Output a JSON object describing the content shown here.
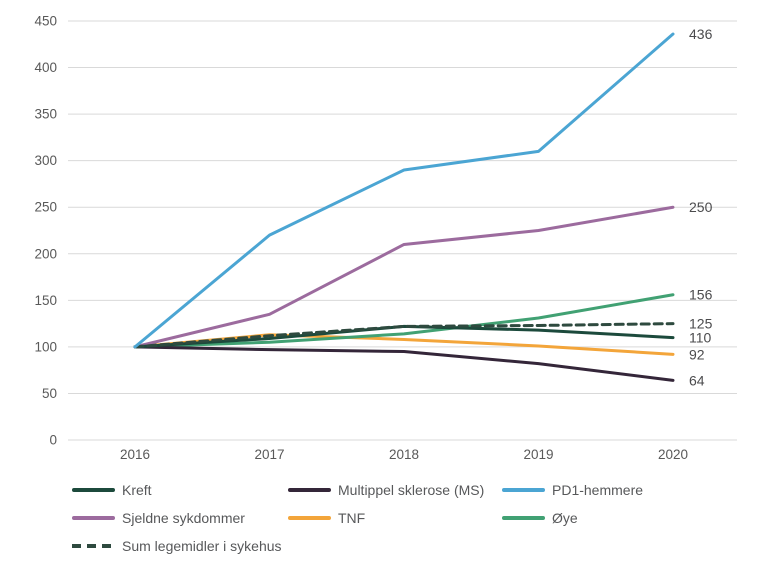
{
  "chart_data": {
    "type": "line",
    "title": "",
    "xlabel": "",
    "ylabel": "",
    "categories": [
      "2016",
      "2017",
      "2018",
      "2019",
      "2020"
    ],
    "ylim": [
      0,
      450
    ],
    "yticks": [
      "0",
      "50",
      "100",
      "150",
      "200",
      "250",
      "300",
      "350",
      "400",
      "450"
    ],
    "grid": "horizontal",
    "legend_position": "bottom",
    "series": [
      {
        "name": "Kreft",
        "color": "#1c4a3c",
        "dash": false,
        "values": [
          100,
          109,
          122,
          118,
          110
        ],
        "end_label": "110"
      },
      {
        "name": "Multippel sklerose (MS)",
        "color": "#342639",
        "dash": false,
        "values": [
          100,
          97,
          95,
          82,
          64
        ],
        "end_label": "64"
      },
      {
        "name": "PD1-hemmere",
        "color": "#4ba5d3",
        "dash": false,
        "values": [
          100,
          220,
          290,
          310,
          436
        ],
        "end_label": "436"
      },
      {
        "name": "Sjeldne sykdommer",
        "color": "#9c6b9e",
        "dash": false,
        "values": [
          100,
          135,
          210,
          225,
          250
        ],
        "end_label": "250"
      },
      {
        "name": "TNF",
        "color": "#f3a53a",
        "dash": false,
        "values": [
          100,
          113,
          108,
          101,
          92
        ],
        "end_label": "92"
      },
      {
        "name": "Øye",
        "color": "#41a173",
        "dash": false,
        "values": [
          100,
          105,
          114,
          131,
          156
        ],
        "end_label": "156"
      },
      {
        "name": "Sum legemidler i sykehus",
        "color": "#2e4a3f",
        "dash": true,
        "values": [
          100,
          112,
          122,
          123,
          125
        ],
        "end_label": "125"
      }
    ],
    "text_colors": {
      "axis_tick": "#595959",
      "end_label": "#4b4b4d",
      "gridline": "#d9d9d9"
    }
  }
}
